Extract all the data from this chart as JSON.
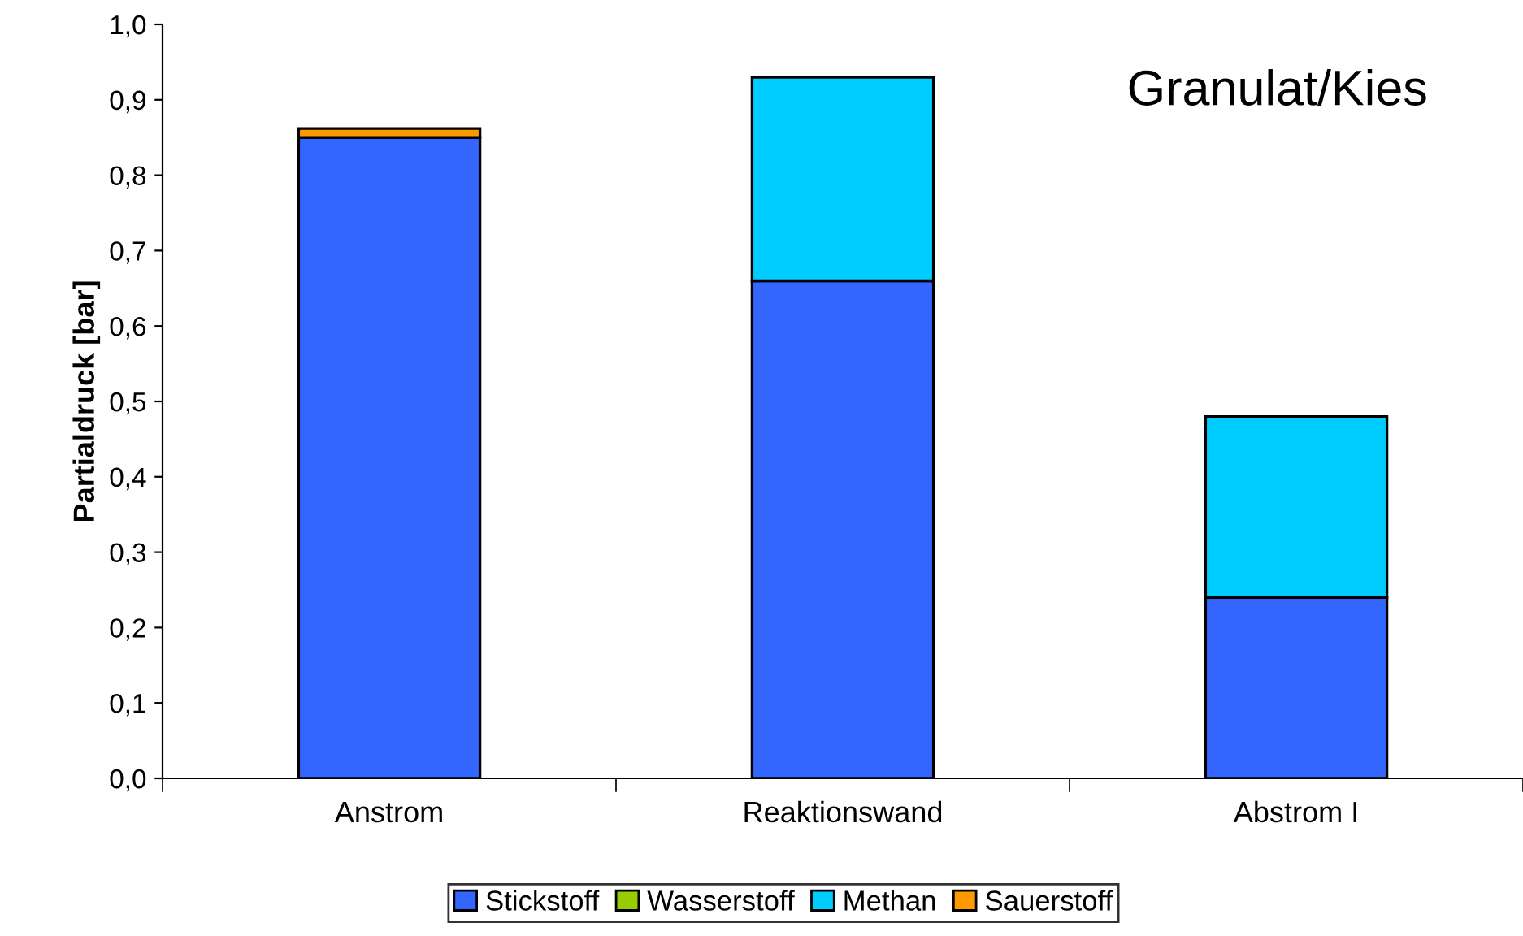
{
  "chart_data": {
    "type": "bar",
    "stacked": true,
    "ylabel": "Partialdruck [bar]",
    "annotations": [
      "Granulat/Kies"
    ],
    "categories": [
      "Anstrom",
      "Reaktionswand",
      "Abstrom I"
    ],
    "series": [
      {
        "name": "Stickstoff",
        "color": "#3366ff",
        "values": [
          0.85,
          0.66,
          0.24
        ]
      },
      {
        "name": "Wasserstoff",
        "color": "#99cc00",
        "values": [
          0,
          0,
          0
        ]
      },
      {
        "name": "Methan",
        "color": "#00ccff",
        "values": [
          0,
          0.27,
          0.24
        ]
      },
      {
        "name": "Sauerstoff",
        "color": "#ff9900",
        "values": [
          0.012,
          0,
          0
        ]
      }
    ],
    "ylim": [
      0,
      1.0
    ],
    "yticks": [
      {
        "value": 0,
        "label": "0,0"
      },
      {
        "value": 0.1,
        "label": "0,1"
      },
      {
        "value": 0.2,
        "label": "0,2"
      },
      {
        "value": 0.3,
        "label": "0,3"
      },
      {
        "value": 0.4,
        "label": "0,4"
      },
      {
        "value": 0.5,
        "label": "0,5"
      },
      {
        "value": 0.6,
        "label": "0,6"
      },
      {
        "value": 0.7,
        "label": "0,7"
      },
      {
        "value": 0.8,
        "label": "0,8"
      },
      {
        "value": 0.9,
        "label": "0,9"
      },
      {
        "value": 1.0,
        "label": "1,0"
      }
    ],
    "grid": false,
    "legend": "bottom"
  }
}
